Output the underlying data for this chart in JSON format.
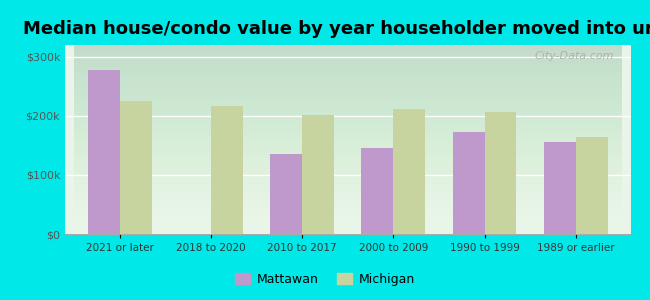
{
  "title": "Median house/condo value by year householder moved into unit",
  "categories": [
    "2021 or later",
    "2018 to 2020",
    "2010 to 2017",
    "2000 to 2009",
    "1990 to 1999",
    "1989 or earlier"
  ],
  "mattawan_values": [
    278000,
    0,
    135000,
    145000,
    172000,
    155000
  ],
  "michigan_values": [
    225000,
    217000,
    202000,
    212000,
    207000,
    165000
  ],
  "mattawan_color": "#bf99cc",
  "michigan_color": "#c8d4a0",
  "background_color": "#00e8e8",
  "yticks": [
    0,
    100000,
    200000,
    300000
  ],
  "ylim": [
    0,
    320000
  ],
  "title_fontsize": 13,
  "legend_labels": [
    "Mattawan",
    "Michigan"
  ],
  "watermark": "City-Data.com"
}
